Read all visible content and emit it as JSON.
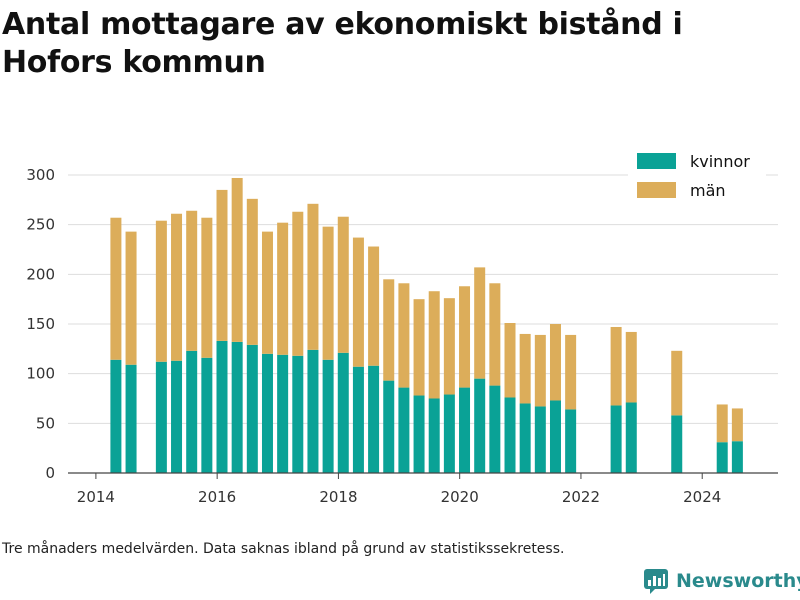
{
  "title": "Antal mottagare av ekonomiskt bistånd i Hofors kommun",
  "caption": "Tre månaders medelvärden. Data saknas ibland på grund av statistikssekretess.",
  "brand": "Newsworthy",
  "colors": {
    "kvinnor": "#0aa296",
    "man": "#dcad5a",
    "grid": "#dddddd",
    "axis": "#444444",
    "brand": "#2a8a8c"
  },
  "chart_data": {
    "type": "bar",
    "stacked": true,
    "title": "Antal mottagare av ekonomiskt bistånd i Hofors kommun",
    "xlabel": "",
    "ylabel": "",
    "ylim": [
      0,
      300
    ],
    "yticks": [
      0,
      50,
      100,
      150,
      200,
      250,
      300
    ],
    "xlim": [
      2013.54,
      2025.25
    ],
    "xticks": [
      2014,
      2016,
      2018,
      2020,
      2022,
      2024
    ],
    "grid": "horizontal",
    "legend": {
      "position": "top-right",
      "entries": [
        "kvinnor",
        "män"
      ]
    },
    "x": [
      2014.33,
      2014.58,
      2015.08,
      2015.33,
      2015.58,
      2015.83,
      2016.08,
      2016.33,
      2016.58,
      2016.83,
      2017.08,
      2017.33,
      2017.58,
      2017.83,
      2018.08,
      2018.33,
      2018.58,
      2018.83,
      2019.08,
      2019.33,
      2019.58,
      2019.83,
      2020.08,
      2020.33,
      2020.58,
      2020.83,
      2021.08,
      2021.33,
      2021.58,
      2021.83,
      2022.58,
      2022.83,
      2023.58,
      2024.33,
      2024.58
    ],
    "series": [
      {
        "name": "kvinnor",
        "values": [
          114,
          109,
          112,
          113,
          123,
          116,
          133,
          132,
          129,
          120,
          119,
          118,
          124,
          114,
          121,
          107,
          108,
          93,
          86,
          78,
          75,
          79,
          86,
          95,
          88,
          76,
          70,
          67,
          73,
          64,
          68,
          71,
          58,
          31,
          32
        ]
      },
      {
        "name": "män",
        "values": [
          143,
          134,
          142,
          148,
          141,
          141,
          152,
          165,
          147,
          123,
          133,
          145,
          147,
          134,
          137,
          130,
          120,
          102,
          105,
          97,
          108,
          97,
          102,
          112,
          103,
          75,
          70,
          72,
          77,
          75,
          79,
          71,
          65,
          38,
          33
        ]
      }
    ]
  }
}
